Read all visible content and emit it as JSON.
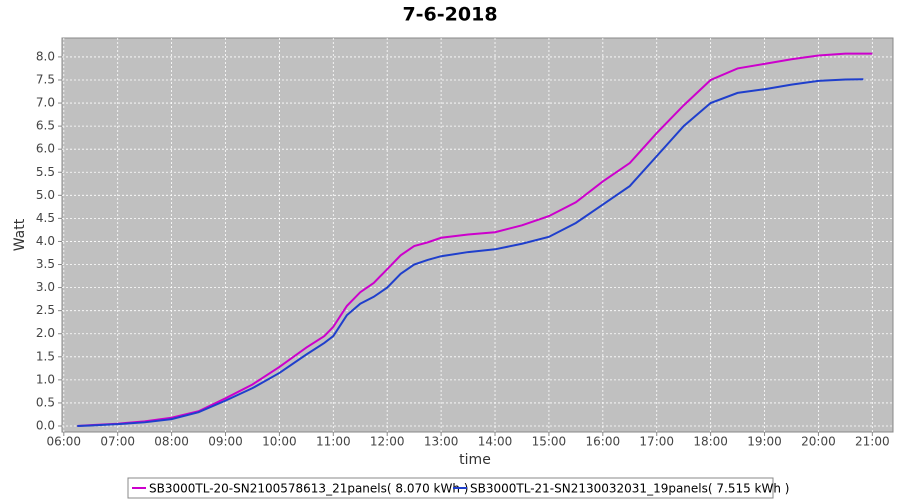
{
  "chart_data": {
    "type": "line",
    "title": "7-6-2018",
    "x_label": "time",
    "y_label": "Watt",
    "x": [
      "06:15",
      "06:30",
      "07:00",
      "07:30",
      "08:00",
      "08:30",
      "09:00",
      "09:30",
      "10:00",
      "10:30",
      "10:50",
      "11:00",
      "11:15",
      "11:30",
      "11:45",
      "12:00",
      "12:15",
      "12:30",
      "12:45",
      "13:00",
      "13:30",
      "14:00",
      "14:30",
      "15:00",
      "15:30",
      "16:00",
      "16:30",
      "17:00",
      "17:30",
      "18:00",
      "18:30",
      "19:00",
      "19:30",
      "20:00",
      "20:30",
      "20:50",
      "21:00"
    ],
    "series": [
      {
        "name": "SB3000TL-20-SN2100578613_21panels( 8.070 kWh )",
        "color": "#cc00cc",
        "values": [
          0.0,
          0.02,
          0.05,
          0.1,
          0.18,
          0.32,
          0.6,
          0.9,
          1.28,
          1.7,
          1.95,
          2.15,
          2.6,
          2.9,
          3.1,
          3.4,
          3.7,
          3.9,
          3.98,
          4.08,
          4.15,
          4.2,
          4.35,
          4.55,
          4.85,
          5.3,
          5.7,
          6.35,
          6.95,
          7.5,
          7.75,
          7.85,
          7.95,
          8.03,
          8.07,
          8.07,
          8.07
        ]
      },
      {
        "name": "SB3000TL-21-SN2130032031_19panels( 7.515 kWh )",
        "color": "#1f3fcc",
        "values": [
          0.0,
          0.01,
          0.04,
          0.08,
          0.15,
          0.3,
          0.55,
          0.82,
          1.15,
          1.55,
          1.8,
          1.95,
          2.4,
          2.65,
          2.8,
          3.0,
          3.3,
          3.5,
          3.6,
          3.68,
          3.77,
          3.83,
          3.95,
          4.1,
          4.4,
          4.8,
          5.2,
          5.85,
          6.5,
          7.0,
          7.22,
          7.3,
          7.4,
          7.48,
          7.51,
          7.515,
          null
        ]
      }
    ],
    "xlim": [
      "05:58",
      "21:23"
    ],
    "xticks": [
      "06:00",
      "07:00",
      "08:00",
      "09:00",
      "10:00",
      "11:00",
      "12:00",
      "13:00",
      "14:00",
      "15:00",
      "16:00",
      "17:00",
      "18:00",
      "19:00",
      "20:00",
      "21:00"
    ],
    "ylim": [
      -0.13,
      8.41
    ],
    "yticks": [
      {
        "value": 0,
        "label": "0.0"
      },
      {
        "value": 0.5,
        "label": "0.5"
      },
      {
        "value": 1,
        "label": "1.0"
      },
      {
        "value": 1.5,
        "label": "1.5"
      },
      {
        "value": 2,
        "label": "2.0"
      },
      {
        "value": 2.5,
        "label": "2.5"
      },
      {
        "value": 3,
        "label": "3.0"
      },
      {
        "value": 3.5,
        "label": "3.5"
      },
      {
        "value": 4,
        "label": "4.0"
      },
      {
        "value": 4.5,
        "label": "4.5"
      },
      {
        "value": 5,
        "label": "5.0"
      },
      {
        "value": 5.5,
        "label": "5.5"
      },
      {
        "value": 6,
        "label": "6.0"
      },
      {
        "value": 6.5,
        "label": "6.5"
      },
      {
        "value": 7,
        "label": "7.0"
      },
      {
        "value": 7.5,
        "label": "7.5"
      },
      {
        "value": 8,
        "label": "8.0"
      }
    ],
    "grid": true
  }
}
